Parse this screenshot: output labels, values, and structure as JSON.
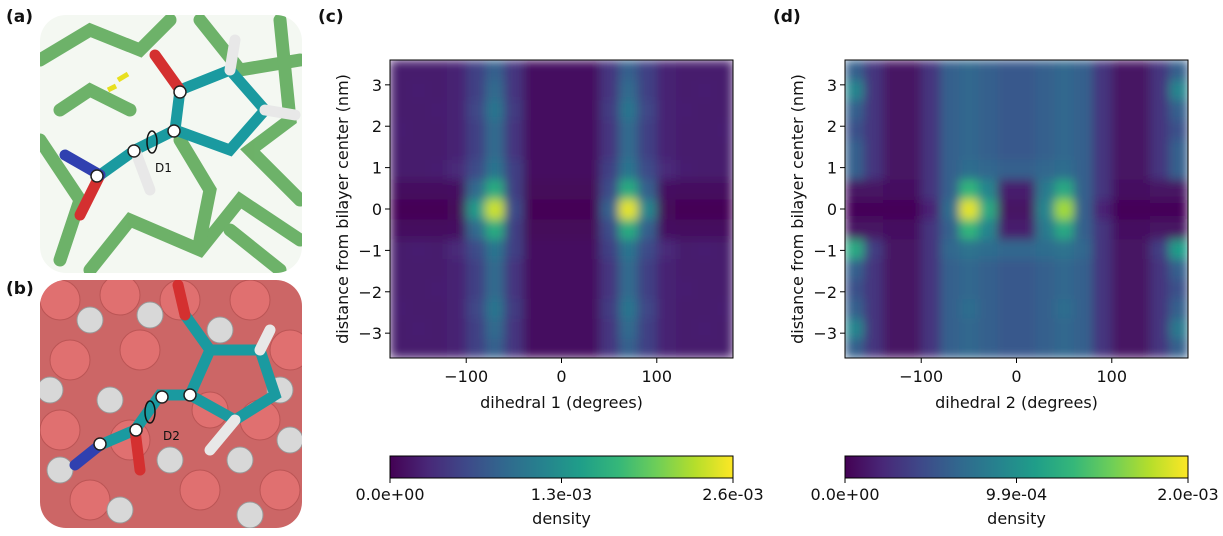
{
  "panels": {
    "a": {
      "label": "(a)",
      "dihedral": "D1"
    },
    "b": {
      "label": "(b)",
      "dihedral": "D2"
    }
  },
  "chart_data": [
    {
      "type": "heatmap",
      "panel_label": "(c)",
      "xlabel": "dihedral 1 (degrees)",
      "ylabel": "distance from bilayer center (nm)",
      "xlim": [
        -180,
        180
      ],
      "ylim": [
        -3.6,
        3.6
      ],
      "xticks": [
        {
          "value": -100,
          "label": "−100"
        },
        0,
        100
      ],
      "yticks": [
        {
          "value": -3,
          "label": "−3"
        },
        {
          "value": -2,
          "label": "−2"
        },
        {
          "value": -1,
          "label": "−1"
        },
        0,
        1,
        2,
        3
      ],
      "xbins": [
        -180,
        -160,
        -140,
        -120,
        -100,
        -80,
        -60,
        -40,
        -20,
        0,
        20,
        40,
        60,
        80,
        100,
        120,
        140,
        160,
        180
      ],
      "ybins": [
        -3.6,
        -3.12,
        -2.64,
        -2.16,
        -1.68,
        -1.2,
        -0.72,
        -0.24,
        0.24,
        0.72,
        1.2,
        1.68,
        2.16,
        2.64,
        3.12,
        3.6
      ],
      "z": [
        [
          0.0002,
          0.0002,
          0.0002,
          0.00025,
          0.0005,
          0.0008,
          0.0004,
          0.0001,
          0.0001,
          0.0001,
          0.0001,
          0.0004,
          0.0008,
          0.0005,
          0.00025,
          0.0002,
          0.0002,
          0.0002
        ],
        [
          0.0002,
          0.00022,
          0.0002,
          0.00025,
          0.0005,
          0.0009,
          0.0004,
          0.0001,
          0.0001,
          0.0001,
          0.0001,
          0.0004,
          0.0009,
          0.0005,
          0.00025,
          0.0002,
          0.00022,
          0.0002
        ],
        [
          0.00022,
          0.0002,
          0.0002,
          0.00025,
          0.00055,
          0.001,
          0.00045,
          0.0001,
          0.0001,
          0.0001,
          0.0001,
          0.00045,
          0.001,
          0.00055,
          0.00025,
          0.0002,
          0.0002,
          0.00022
        ],
        [
          0.0002,
          0.0002,
          0.00022,
          0.00025,
          0.0005,
          0.0009,
          0.0004,
          0.0001,
          0.0001,
          0.0001,
          0.0001,
          0.0004,
          0.0009,
          0.0005,
          0.00025,
          0.00022,
          0.0002,
          0.0002
        ],
        [
          0.0002,
          0.0002,
          0.0002,
          0.00025,
          0.0005,
          0.0009,
          0.0004,
          0.0001,
          0.0001,
          0.0001,
          0.0001,
          0.0004,
          0.0009,
          0.0005,
          0.00025,
          0.0002,
          0.0002,
          0.0002
        ],
        [
          0.0002,
          0.00022,
          0.0002,
          0.0003,
          0.0006,
          0.001,
          0.0005,
          0.0001,
          0.0001,
          0.0001,
          0.0001,
          0.0005,
          0.001,
          0.0006,
          0.0003,
          0.0002,
          0.00022,
          0.0002
        ],
        [
          8e-05,
          8e-05,
          8e-05,
          0.0001,
          0.0009,
          0.0016,
          0.0005,
          5e-05,
          5e-05,
          5e-05,
          5e-05,
          0.0006,
          0.0016,
          0.0008,
          0.0001,
          8e-05,
          8e-05,
          8e-05
        ],
        [
          2e-05,
          2e-05,
          2e-05,
          5e-05,
          0.0014,
          0.0024,
          0.0006,
          2e-05,
          2e-05,
          2e-05,
          2e-05,
          0.0008,
          0.0025,
          0.0012,
          5e-05,
          2e-05,
          2e-05,
          2e-05
        ],
        [
          8e-05,
          8e-05,
          8e-05,
          0.0001,
          0.0009,
          0.0016,
          0.0005,
          5e-05,
          5e-05,
          5e-05,
          5e-05,
          0.0006,
          0.0016,
          0.0008,
          0.0001,
          8e-05,
          8e-05,
          8e-05
        ],
        [
          0.0002,
          0.0002,
          0.00022,
          0.0003,
          0.0006,
          0.001,
          0.0005,
          0.0001,
          0.0001,
          0.0001,
          0.0001,
          0.0005,
          0.001,
          0.0006,
          0.0003,
          0.00022,
          0.0002,
          0.0002
        ],
        [
          0.0002,
          0.0002,
          0.0002,
          0.00025,
          0.0005,
          0.0009,
          0.0004,
          0.0001,
          0.0001,
          0.0001,
          0.0001,
          0.0004,
          0.0009,
          0.0005,
          0.00025,
          0.0002,
          0.0002,
          0.0002
        ],
        [
          0.00022,
          0.0002,
          0.0002,
          0.00025,
          0.0005,
          0.0009,
          0.0004,
          0.0001,
          0.0001,
          0.0001,
          0.0001,
          0.0004,
          0.0009,
          0.0005,
          0.00025,
          0.0002,
          0.0002,
          0.00022
        ],
        [
          0.0002,
          0.0002,
          0.00022,
          0.00025,
          0.00055,
          0.001,
          0.00045,
          0.0001,
          0.0001,
          0.0001,
          0.0001,
          0.00045,
          0.001,
          0.00055,
          0.00025,
          0.00022,
          0.0002,
          0.0002
        ],
        [
          0.0002,
          0.00022,
          0.0002,
          0.00025,
          0.0005,
          0.0009,
          0.0004,
          0.0001,
          0.0001,
          0.0001,
          0.0001,
          0.0004,
          0.0009,
          0.0005,
          0.00025,
          0.0002,
          0.00022,
          0.0002
        ],
        [
          0.0002,
          0.0002,
          0.0002,
          0.00025,
          0.0005,
          0.0008,
          0.0004,
          0.0001,
          0.0001,
          0.0001,
          0.0001,
          0.0004,
          0.0008,
          0.0005,
          0.00025,
          0.0002,
          0.0002,
          0.0002
        ]
      ],
      "colormap": "viridis",
      "zlim": [
        0,
        0.0026
      ],
      "zticks": [
        {
          "value": 0,
          "label": "0.0e+00"
        },
        {
          "value": 0.0013,
          "label": "1.3e-03"
        },
        {
          "value": 0.0026,
          "label": "2.6e-03"
        }
      ],
      "colorbar_label": "density"
    },
    {
      "type": "heatmap",
      "panel_label": "(d)",
      "xlabel": "dihedral 2 (degrees)",
      "ylabel": "distance from bilayer center (nm)",
      "xlim": [
        -180,
        180
      ],
      "ylim": [
        -3.6,
        3.6
      ],
      "xticks": [
        {
          "value": -100,
          "label": "−100"
        },
        0,
        100
      ],
      "yticks": [
        {
          "value": -3,
          "label": "−3"
        },
        {
          "value": -2,
          "label": "−2"
        },
        {
          "value": -1,
          "label": "−1"
        },
        0,
        1,
        2,
        3
      ],
      "xbins": [
        -180,
        -160,
        -140,
        -120,
        -100,
        -80,
        -60,
        -40,
        -20,
        0,
        20,
        40,
        60,
        80,
        100,
        120,
        140,
        160,
        180
      ],
      "ybins": [
        -3.6,
        -3.12,
        -2.64,
        -2.16,
        -1.68,
        -1.2,
        -0.72,
        -0.24,
        0.24,
        0.72,
        1.2,
        1.68,
        2.16,
        2.64,
        3.12,
        3.6
      ],
      "z": [
        [
          0.0006,
          0.0003,
          0.0001,
          0.0001,
          0.0003,
          0.0006,
          0.00065,
          0.0006,
          0.00055,
          0.00055,
          0.0006,
          0.00065,
          0.0006,
          0.0003,
          0.0001,
          0.0001,
          0.0003,
          0.0006
        ],
        [
          0.0009,
          0.0003,
          0.0001,
          0.0001,
          0.0003,
          0.0006,
          0.00065,
          0.0006,
          0.00055,
          0.00055,
          0.0006,
          0.00065,
          0.0006,
          0.0003,
          0.0001,
          0.0001,
          0.0003,
          0.0008
        ],
        [
          0.0006,
          0.0003,
          0.0001,
          0.0001,
          0.0003,
          0.0006,
          0.0007,
          0.0006,
          0.00055,
          0.00055,
          0.0006,
          0.0007,
          0.0006,
          0.0003,
          0.0001,
          0.0001,
          0.0003,
          0.0006
        ],
        [
          0.0005,
          0.0003,
          0.0001,
          0.0001,
          0.0003,
          0.0006,
          0.00065,
          0.0006,
          0.00055,
          0.00055,
          0.0006,
          0.00065,
          0.0006,
          0.0003,
          0.0001,
          0.0001,
          0.0003,
          0.0005
        ],
        [
          0.0006,
          0.0003,
          0.0001,
          0.0001,
          0.0003,
          0.0006,
          0.00065,
          0.0006,
          0.00055,
          0.00055,
          0.0006,
          0.00065,
          0.0006,
          0.0003,
          0.0001,
          0.0001,
          0.0003,
          0.0006
        ],
        [
          0.0012,
          0.00035,
          0.0001,
          0.0001,
          0.0003,
          0.00065,
          0.00075,
          0.0007,
          0.00065,
          0.00065,
          0.0007,
          0.00075,
          0.00065,
          0.0003,
          0.0001,
          0.0001,
          0.00035,
          0.0011
        ],
        [
          0.0001,
          0.0001,
          8e-05,
          8e-05,
          0.0003,
          0.0006,
          0.0013,
          0.0009,
          0.00015,
          0.00015,
          0.0008,
          0.0012,
          0.0006,
          0.0003,
          8e-05,
          8e-05,
          0.0001,
          0.0001
        ],
        [
          3e-05,
          3e-05,
          3e-05,
          3e-05,
          0.0002,
          0.0007,
          0.0019,
          0.0012,
          0.0001,
          0.0001,
          0.0009,
          0.0017,
          0.0006,
          0.0002,
          3e-05,
          3e-05,
          3e-05,
          3e-05
        ],
        [
          0.0001,
          0.0001,
          8e-05,
          8e-05,
          0.0003,
          0.0006,
          0.0013,
          0.0009,
          0.00015,
          0.00015,
          0.0008,
          0.0012,
          0.0006,
          0.0003,
          8e-05,
          8e-05,
          0.0001,
          0.0001
        ],
        [
          0.0006,
          0.0003,
          0.0001,
          0.0001,
          0.0003,
          0.0006,
          0.0007,
          0.00065,
          0.0006,
          0.0006,
          0.00065,
          0.0007,
          0.0006,
          0.0003,
          0.0001,
          0.0001,
          0.0003,
          0.0006
        ],
        [
          0.0006,
          0.0003,
          0.0001,
          0.0001,
          0.0003,
          0.0006,
          0.00065,
          0.0006,
          0.00055,
          0.00055,
          0.0006,
          0.00065,
          0.0006,
          0.0003,
          0.0001,
          0.0001,
          0.0003,
          0.0006
        ],
        [
          0.0005,
          0.0003,
          0.0001,
          0.0001,
          0.0003,
          0.0006,
          0.00065,
          0.0006,
          0.00055,
          0.00055,
          0.0006,
          0.00065,
          0.0006,
          0.0003,
          0.0001,
          0.0001,
          0.0003,
          0.0005
        ],
        [
          0.0006,
          0.0003,
          0.0001,
          0.0001,
          0.0003,
          0.0006,
          0.00065,
          0.0006,
          0.00055,
          0.00055,
          0.0006,
          0.00065,
          0.0006,
          0.0003,
          0.0001,
          0.0001,
          0.0003,
          0.0006
        ],
        [
          0.0009,
          0.0003,
          0.0001,
          0.0001,
          0.0003,
          0.0006,
          0.00065,
          0.0006,
          0.00055,
          0.00055,
          0.0006,
          0.00065,
          0.0006,
          0.0003,
          0.0001,
          0.0001,
          0.0003,
          0.0009
        ],
        [
          0.0006,
          0.0003,
          0.0001,
          0.0001,
          0.0003,
          0.0006,
          0.00065,
          0.0006,
          0.00055,
          0.00055,
          0.0006,
          0.00065,
          0.0006,
          0.0003,
          0.0001,
          0.0001,
          0.0003,
          0.0006
        ]
      ],
      "colormap": "viridis",
      "zlim": [
        0,
        0.00198
      ],
      "zticks": [
        {
          "value": 0,
          "label": "0.0e+00"
        },
        {
          "value": 0.00099,
          "label": "9.9e-04"
        },
        {
          "value": 0.00198,
          "label": "2.0e-03"
        }
      ],
      "colorbar_label": "density"
    }
  ]
}
